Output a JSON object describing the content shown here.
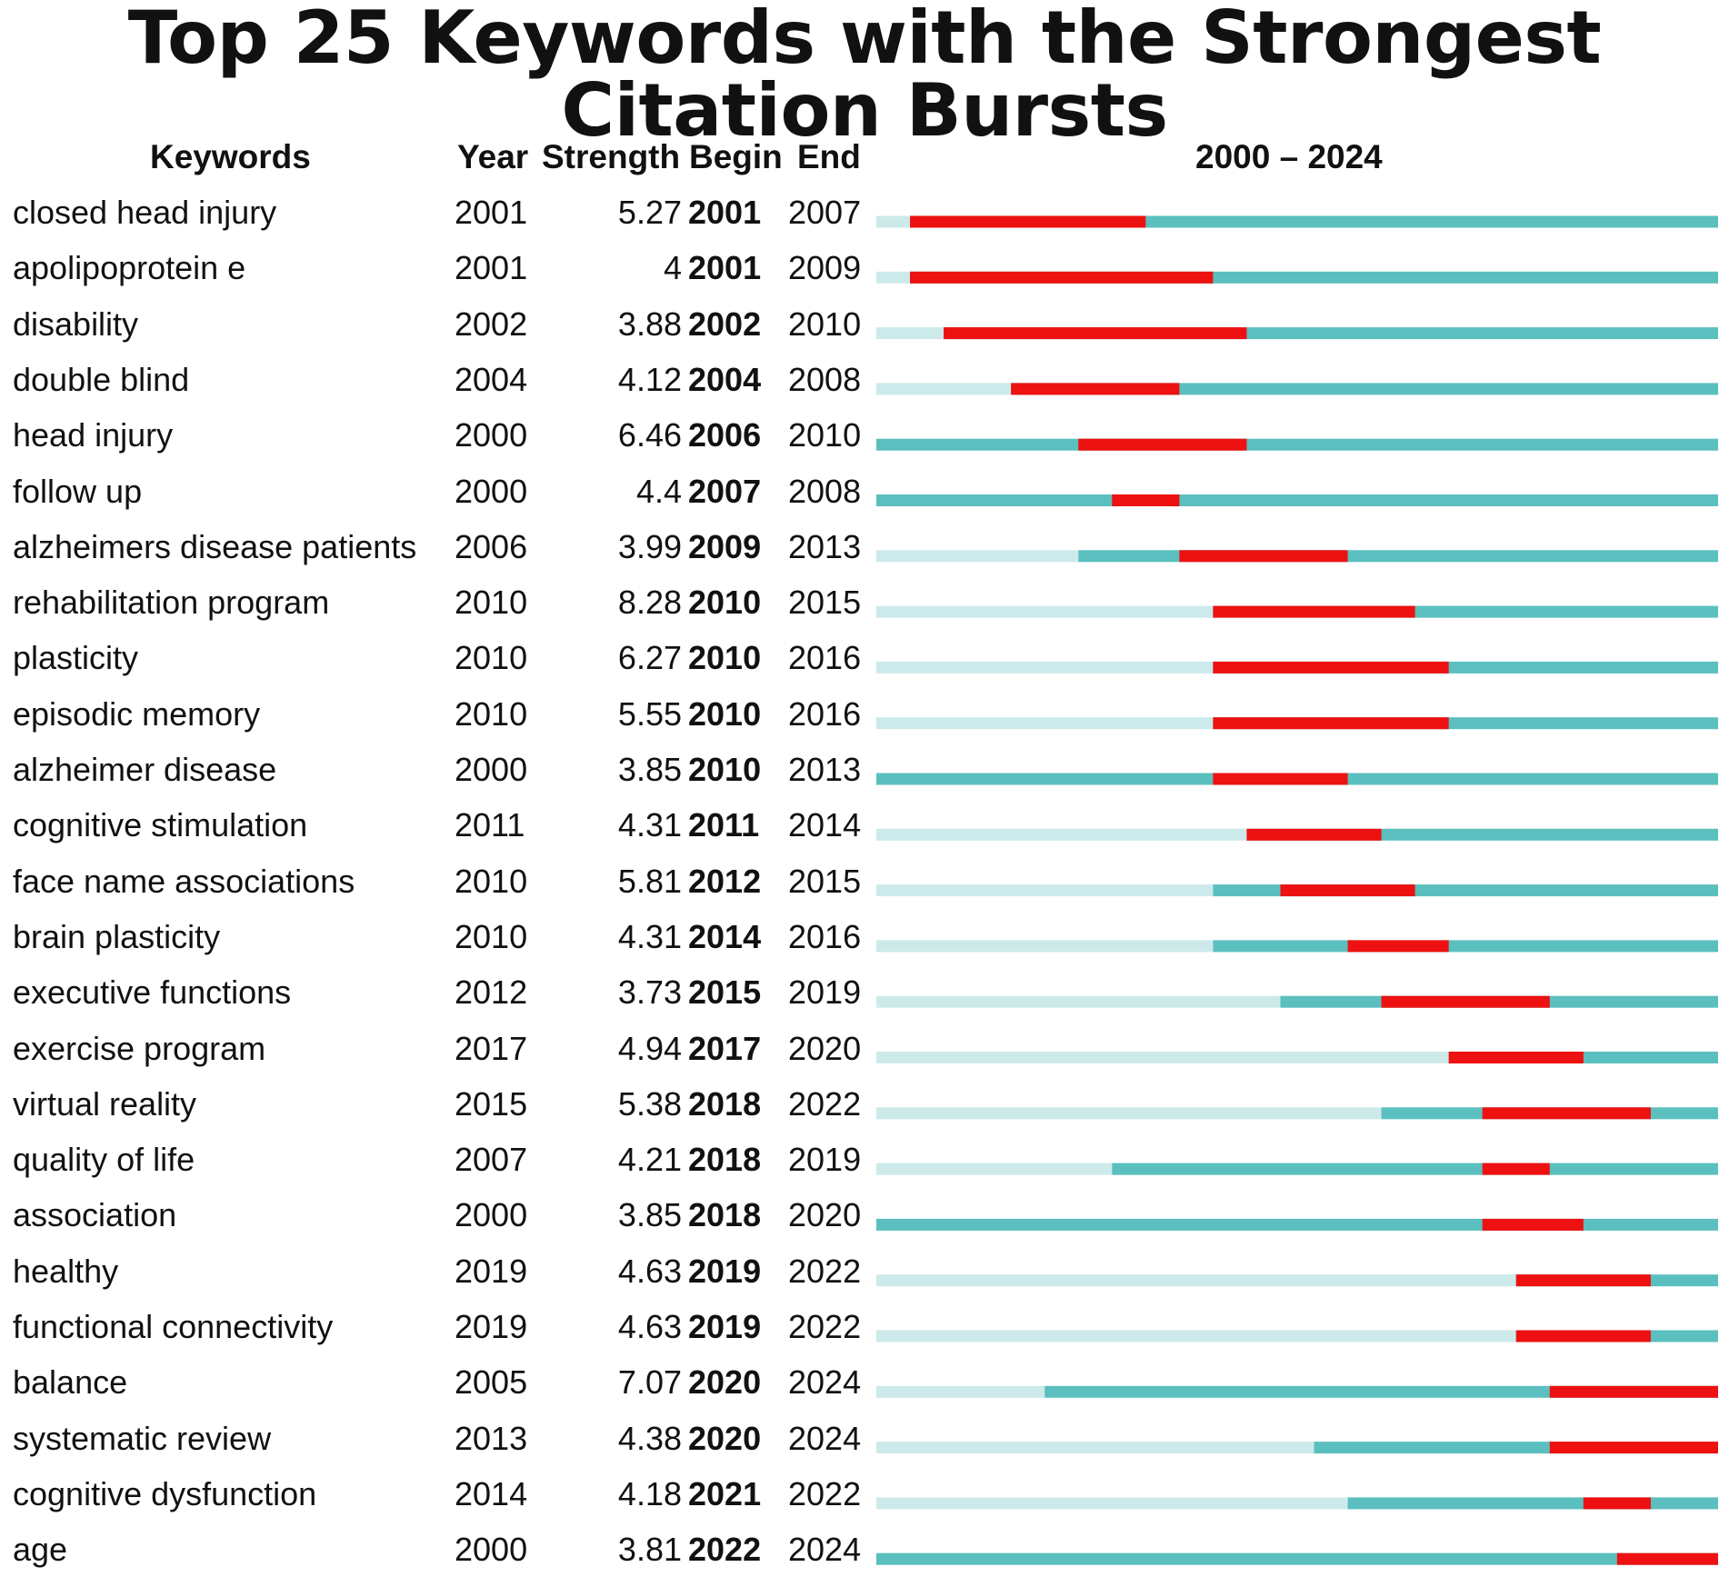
{
  "chart_data": {
    "type": "table",
    "title": "Top 25 Keywords with the Strongest Citation Bursts",
    "columns": [
      "Keywords",
      "Year",
      "Strength",
      "Begin",
      "End"
    ],
    "range_label": "2000 – 2024",
    "range": [
      2000,
      2024
    ],
    "colors": {
      "burst": "#ee1111",
      "active": "#5bbfbf",
      "inactive": "#cdeaea"
    },
    "rows": [
      {
        "keyword": "closed head injury",
        "year": 2001,
        "strength": "5.27",
        "begin": 2001,
        "end": 2007
      },
      {
        "keyword": "apolipoprotein e",
        "year": 2001,
        "strength": "4",
        "begin": 2001,
        "end": 2009
      },
      {
        "keyword": "disability",
        "year": 2002,
        "strength": "3.88",
        "begin": 2002,
        "end": 2010
      },
      {
        "keyword": "double blind",
        "year": 2004,
        "strength": "4.12",
        "begin": 2004,
        "end": 2008
      },
      {
        "keyword": "head injury",
        "year": 2000,
        "strength": "6.46",
        "begin": 2006,
        "end": 2010
      },
      {
        "keyword": "follow up",
        "year": 2000,
        "strength": "4.4",
        "begin": 2007,
        "end": 2008
      },
      {
        "keyword": "alzheimers disease patients",
        "year": 2006,
        "strength": "3.99",
        "begin": 2009,
        "end": 2013
      },
      {
        "keyword": "rehabilitation program",
        "year": 2010,
        "strength": "8.28",
        "begin": 2010,
        "end": 2015
      },
      {
        "keyword": "plasticity",
        "year": 2010,
        "strength": "6.27",
        "begin": 2010,
        "end": 2016
      },
      {
        "keyword": "episodic memory",
        "year": 2010,
        "strength": "5.55",
        "begin": 2010,
        "end": 2016
      },
      {
        "keyword": "alzheimer disease",
        "year": 2000,
        "strength": "3.85",
        "begin": 2010,
        "end": 2013
      },
      {
        "keyword": "cognitive stimulation",
        "year": 2011,
        "strength": "4.31",
        "begin": 2011,
        "end": 2014
      },
      {
        "keyword": "face name associations",
        "year": 2010,
        "strength": "5.81",
        "begin": 2012,
        "end": 2015
      },
      {
        "keyword": "brain plasticity",
        "year": 2010,
        "strength": "4.31",
        "begin": 2014,
        "end": 2016
      },
      {
        "keyword": "executive functions",
        "year": 2012,
        "strength": "3.73",
        "begin": 2015,
        "end": 2019
      },
      {
        "keyword": "exercise program",
        "year": 2017,
        "strength": "4.94",
        "begin": 2017,
        "end": 2020
      },
      {
        "keyword": "virtual reality",
        "year": 2015,
        "strength": "5.38",
        "begin": 2018,
        "end": 2022
      },
      {
        "keyword": "quality of life",
        "year": 2007,
        "strength": "4.21",
        "begin": 2018,
        "end": 2019
      },
      {
        "keyword": "association",
        "year": 2000,
        "strength": "3.85",
        "begin": 2018,
        "end": 2020
      },
      {
        "keyword": "healthy",
        "year": 2019,
        "strength": "4.63",
        "begin": 2019,
        "end": 2022
      },
      {
        "keyword": "functional connectivity",
        "year": 2019,
        "strength": "4.63",
        "begin": 2019,
        "end": 2022
      },
      {
        "keyword": "balance",
        "year": 2005,
        "strength": "7.07",
        "begin": 2020,
        "end": 2024
      },
      {
        "keyword": "systematic review",
        "year": 2013,
        "strength": "4.38",
        "begin": 2020,
        "end": 2024
      },
      {
        "keyword": "cognitive dysfunction",
        "year": 2014,
        "strength": "4.18",
        "begin": 2021,
        "end": 2022
      },
      {
        "keyword": "age",
        "year": 2000,
        "strength": "3.81",
        "begin": 2022,
        "end": 2024
      }
    ]
  }
}
